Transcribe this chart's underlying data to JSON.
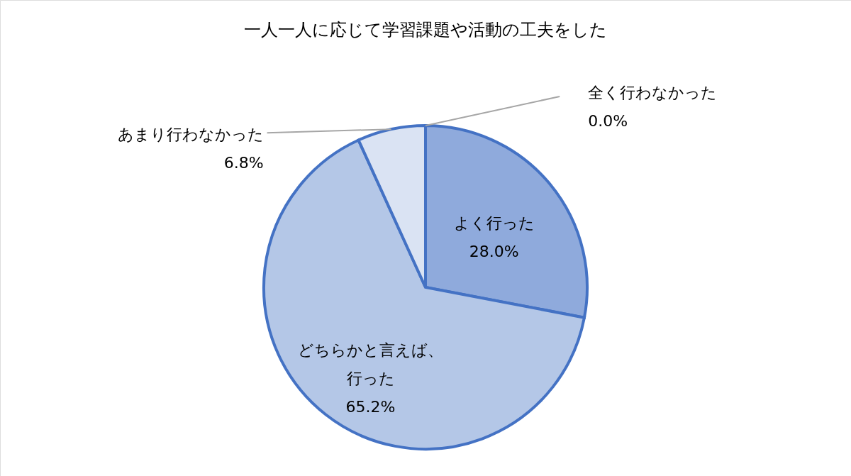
{
  "chart_data": {
    "type": "pie",
    "title": "一人一人に応じて学習課題や活動の工夫をした",
    "categories": [
      "よく行った",
      "どちらかと言えば、行った",
      "あまり行わなかった",
      "全く行わなかった"
    ],
    "values": [
      28.0,
      65.2,
      6.8,
      0.0
    ],
    "colors": [
      "#8faadc",
      "#b4c7e7",
      "#dae3f3",
      "#4472c4"
    ],
    "value_labels": [
      "28.0%",
      "65.2%",
      "6.8%",
      "0.0%"
    ]
  }
}
